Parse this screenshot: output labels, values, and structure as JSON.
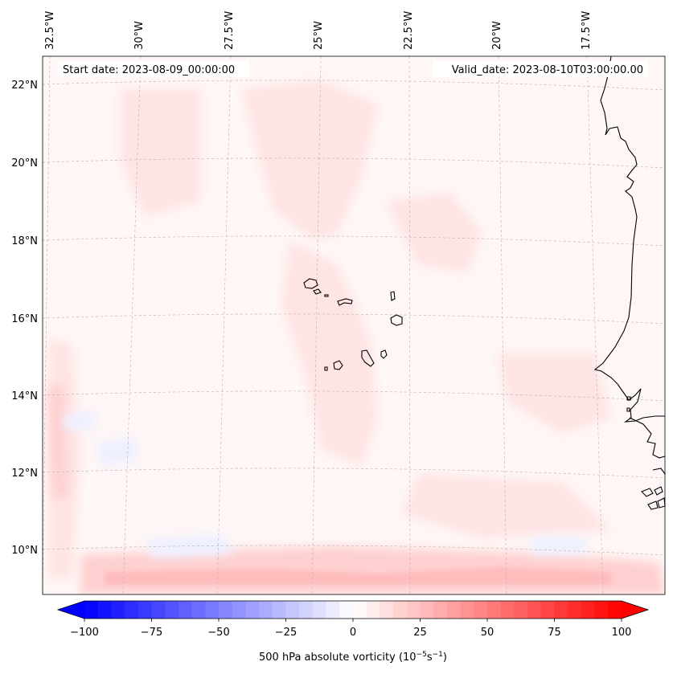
{
  "map": {
    "start_date": "Start date: 2023-08-09_00:00:00",
    "valid_date": "Valid_date: 2023-08-10T03:00:00.00",
    "lon_labels": [
      "32.5°W",
      "30°W",
      "27.5°W",
      "25°W",
      "22.5°W",
      "20°W",
      "17.5°W"
    ],
    "lat_labels": [
      "22°N",
      "20°N",
      "18°N",
      "16°N",
      "14°N",
      "12°N",
      "10°N"
    ],
    "colors": {
      "negative_max": "#0000ff",
      "neutral": "#ffffff",
      "positive_max": "#ff0000",
      "coastline": "#000000",
      "gridline": "#b0b0b0"
    }
  },
  "colorbar": {
    "ticks": [
      "−100",
      "−75",
      "−50",
      "−25",
      "0",
      "25",
      "50",
      "75",
      "100"
    ],
    "title_main": "500 hPa absolute vorticity (10",
    "title_sup1": "−5",
    "title_mid": "s",
    "title_sup2": "−1",
    "title_end": ")",
    "min": -100,
    "max": 100,
    "levels": 40
  }
}
